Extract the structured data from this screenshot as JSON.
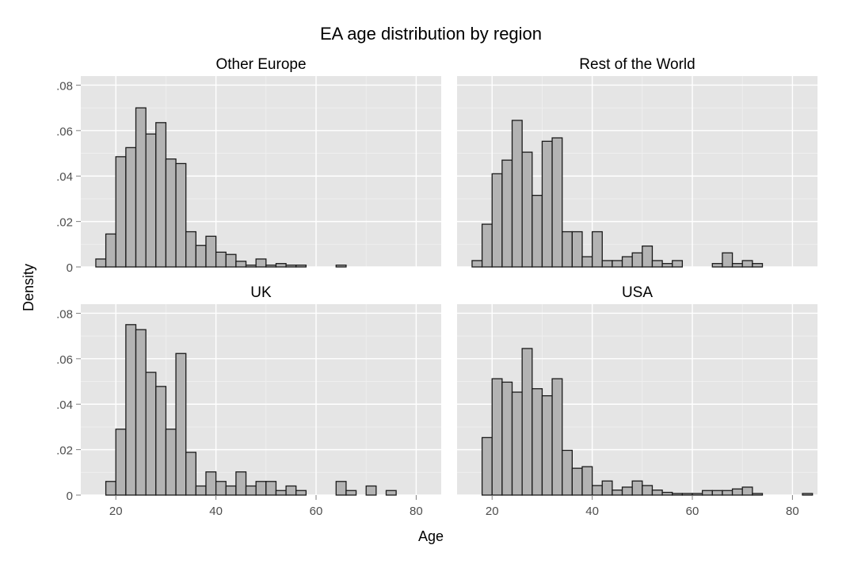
{
  "chart_data": {
    "type": "bar",
    "title": "EA age distribution by region",
    "xlabel": "Age",
    "ylabel": "Density",
    "xlim": [
      13,
      85
    ],
    "ylim": [
      0,
      0.084
    ],
    "x_ticks": [
      20,
      40,
      60,
      80
    ],
    "x_tick_labels": [
      "20",
      "40",
      "60",
      "80"
    ],
    "y_ticks": [
      0,
      0.02,
      0.04,
      0.06,
      0.08
    ],
    "y_tick_labels": [
      "0",
      ".02",
      ".04",
      ".06",
      ".08"
    ],
    "grid": true,
    "bin_width": 2,
    "bin_starts": [
      16,
      18,
      20,
      22,
      24,
      26,
      28,
      30,
      32,
      34,
      36,
      38,
      40,
      42,
      44,
      46,
      48,
      50,
      52,
      54,
      56,
      58,
      60,
      62,
      64,
      66,
      68,
      70,
      72,
      74,
      76,
      78,
      80,
      82
    ],
    "panels": [
      {
        "name": "Other Europe",
        "values": [
          0.0035,
          0.0145,
          0.0485,
          0.0525,
          0.07,
          0.0585,
          0.0635,
          0.0475,
          0.0455,
          0.0155,
          0.0095,
          0.0135,
          0.0065,
          0.0055,
          0.0025,
          0.0008,
          0.0035,
          0.0008,
          0.0015,
          0.0008,
          0.0008,
          0,
          0,
          0,
          0.0008,
          0,
          0,
          0,
          0,
          0,
          0,
          0,
          0,
          0
        ]
      },
      {
        "name": "Rest of the World",
        "values": [
          0.0028,
          0.0188,
          0.041,
          0.047,
          0.0645,
          0.0505,
          0.0315,
          0.0553,
          0.0568,
          0.0155,
          0.0155,
          0.0045,
          0.0155,
          0.0028,
          0.0028,
          0.0045,
          0.0062,
          0.0092,
          0.0028,
          0.0015,
          0.0028,
          0,
          0,
          0,
          0.0015,
          0.0062,
          0.0015,
          0.0028,
          0.0015,
          0,
          0,
          0,
          0,
          0
        ]
      },
      {
        "name": "UK",
        "values": [
          0,
          0.006,
          0.029,
          0.075,
          0.0728,
          0.054,
          0.0478,
          0.029,
          0.0623,
          0.0188,
          0.004,
          0.0102,
          0.006,
          0.004,
          0.0102,
          0.004,
          0.006,
          0.006,
          0.002,
          0.004,
          0.002,
          0,
          0,
          0,
          0.006,
          0.002,
          0,
          0.004,
          0,
          0.002,
          0,
          0,
          0,
          0
        ]
      },
      {
        "name": "USA",
        "values": [
          0,
          0.0253,
          0.0512,
          0.0497,
          0.0453,
          0.0645,
          0.0468,
          0.0437,
          0.0512,
          0.0197,
          0.0118,
          0.0125,
          0.0042,
          0.0062,
          0.0022,
          0.0035,
          0.0062,
          0.0042,
          0.0022,
          0.0012,
          0.0007,
          0.0007,
          0.0007,
          0.002,
          0.002,
          0.002,
          0.0027,
          0.0035,
          0.0007,
          0,
          0,
          0,
          0,
          0.0007
        ]
      }
    ]
  }
}
